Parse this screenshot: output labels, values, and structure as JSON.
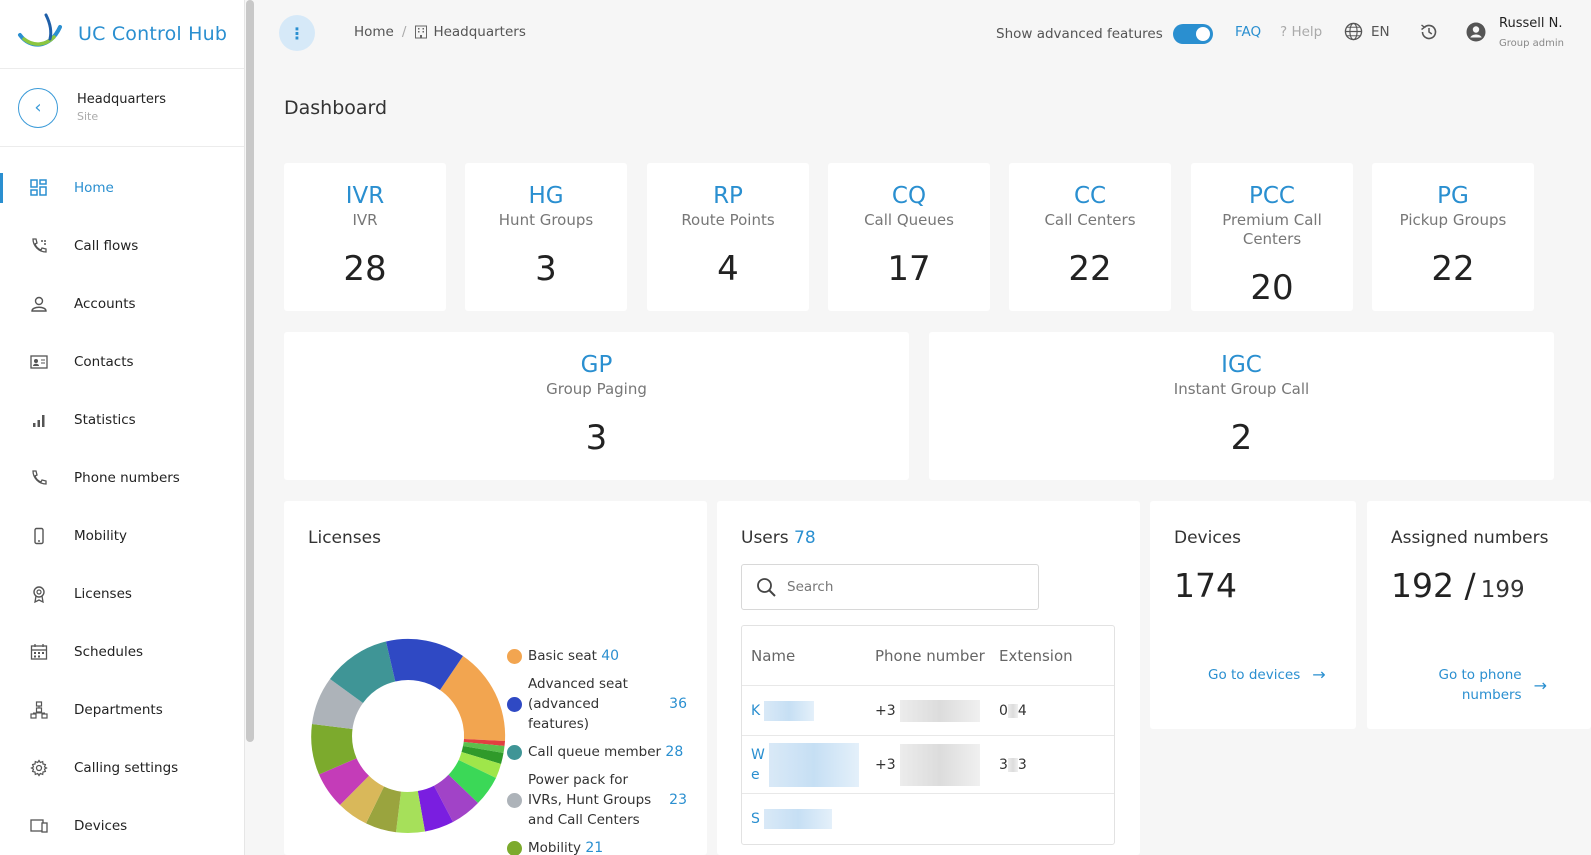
{
  "brand": {
    "title": "UC Control Hub"
  },
  "site": {
    "name": "Headquarters",
    "type": "Site"
  },
  "nav": [
    {
      "label": "Home"
    },
    {
      "label": "Call flows"
    },
    {
      "label": "Accounts"
    },
    {
      "label": "Contacts"
    },
    {
      "label": "Statistics"
    },
    {
      "label": "Phone numbers"
    },
    {
      "label": "Mobility"
    },
    {
      "label": "Licenses"
    },
    {
      "label": "Schedules"
    },
    {
      "label": "Departments"
    },
    {
      "label": "Calling settings"
    },
    {
      "label": "Devices"
    }
  ],
  "topbar": {
    "breadcrumb_home": "Home",
    "breadcrumb_sep": "/",
    "breadcrumb_current": "Headquarters",
    "advanced_label": "Show advanced features",
    "advanced_on": true,
    "faq": "FAQ",
    "help": "? Help",
    "lang": "EN",
    "user_name": "Russell N.",
    "user_role": "Group admin"
  },
  "page_title": "Dashboard",
  "stats": [
    {
      "abbr": "IVR",
      "label": "IVR",
      "value": "28"
    },
    {
      "abbr": "HG",
      "label": "Hunt Groups",
      "value": "3"
    },
    {
      "abbr": "RP",
      "label": "Route Points",
      "value": "4"
    },
    {
      "abbr": "CQ",
      "label": "Call Queues",
      "value": "17"
    },
    {
      "abbr": "CC",
      "label": "Call Centers",
      "value": "22"
    },
    {
      "abbr": "PCC",
      "label": "Premium Call Centers",
      "value": "20"
    },
    {
      "abbr": "PG",
      "label": "Pickup Groups",
      "value": "22"
    },
    {
      "abbr": "GP",
      "label": "Group Paging",
      "value": "3"
    },
    {
      "abbr": "IGC",
      "label": "Instant Group Call",
      "value": "2"
    }
  ],
  "licenses": {
    "title": "Licenses",
    "legend": [
      {
        "label": "Basic seat",
        "value": "40",
        "color": "#f2a550"
      },
      {
        "label": "Advanced seat (advanced features)",
        "value": "36",
        "color": "#2f49c4"
      },
      {
        "label": "Call queue member",
        "value": "28",
        "color": "#3f9596"
      },
      {
        "label": "Power pack for IVRs, Hunt Groups and Call Centers",
        "value": "23",
        "color": "#adb3b9"
      },
      {
        "label": "Mobility",
        "value": "21",
        "color": "#7caa2d"
      }
    ]
  },
  "users": {
    "title": "Users",
    "count": "78",
    "search_placeholder": "Search",
    "columns": [
      "Name",
      "Phone number",
      "Extension"
    ],
    "rows": [
      {
        "name": "K",
        "phone": "+3",
        "ext_a": "0",
        "ext_b": "4"
      },
      {
        "name": "W",
        "name2": "e",
        "phone": "+3",
        "ext_a": "3",
        "ext_b": "3"
      },
      {
        "name": "S",
        "phone": "",
        "ext_a": "",
        "ext_b": ""
      }
    ]
  },
  "devices": {
    "title": "Devices",
    "count": "174",
    "link": "Go to devices"
  },
  "assigned": {
    "title": "Assigned numbers",
    "used": "192 /",
    "total": "199",
    "link": "Go to phone numbers"
  }
}
